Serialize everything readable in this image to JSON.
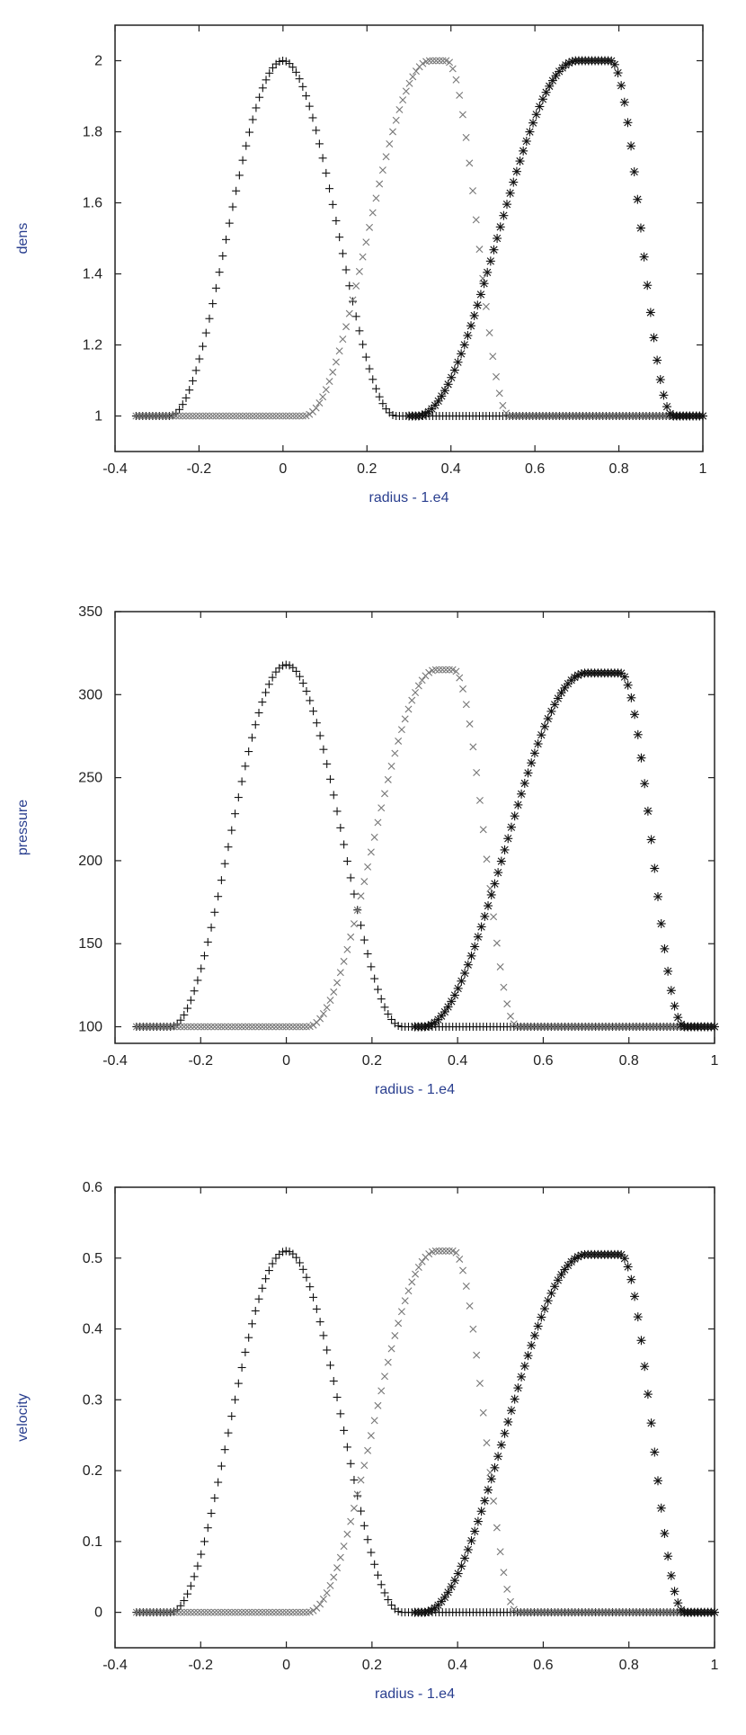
{
  "chart_data": [
    {
      "type": "scatter",
      "ylabel": "dens",
      "xlabel": "radius - 1.e4",
      "xlim": [
        -0.4,
        1.0
      ],
      "ylim": [
        0.9,
        2.1
      ],
      "xticks": [
        "-0.4",
        "-0.2",
        "0",
        "0.2",
        "0.4",
        "0.6",
        "0.8",
        "1"
      ],
      "yticks": [
        "1",
        "1.2",
        "1.4",
        "1.6",
        "1.8",
        "2"
      ],
      "ytick_values": [
        1,
        1.2,
        1.4,
        1.6,
        1.8,
        2
      ],
      "series": [
        {
          "marker": "plus",
          "color": "#111111",
          "base": 1.0,
          "amplitude": 1.0,
          "center": 0.0,
          "width": 0.27,
          "flat": 0.0,
          "x_range": [
            -0.35,
            1.0
          ]
        },
        {
          "marker": "cross",
          "color": "#777777",
          "base": 1.0,
          "amplitude": 1.0,
          "center": 0.37,
          "width_left": 0.3,
          "width_right": 0.15,
          "flat": 0.02,
          "x_range": [
            -0.35,
            1.0
          ]
        },
        {
          "marker": "star",
          "color": "#111111",
          "base": 1.0,
          "amplitude": 1.0,
          "center": 0.74,
          "width_left": 0.38,
          "width_right": 0.15,
          "flat": 0.04,
          "x_range": [
            0.3,
            1.0
          ]
        }
      ]
    },
    {
      "type": "scatter",
      "ylabel": "pressure",
      "xlabel": "radius - 1.e4",
      "xlim": [
        -0.4,
        1.0
      ],
      "ylim": [
        90,
        350
      ],
      "xticks": [
        "-0.4",
        "-0.2",
        "0",
        "0.2",
        "0.4",
        "0.6",
        "0.8",
        "1"
      ],
      "yticks": [
        "100",
        "150",
        "200",
        "250",
        "300",
        "350"
      ],
      "ytick_values": [
        100,
        150,
        200,
        250,
        300,
        350
      ],
      "series": [
        {
          "marker": "plus",
          "color": "#111111",
          "base": 100,
          "amplitude": 218,
          "center": 0.0,
          "width": 0.27,
          "flat": 0.0,
          "x_range": [
            -0.35,
            1.0
          ]
        },
        {
          "marker": "cross",
          "color": "#777777",
          "base": 100,
          "amplitude": 215,
          "center": 0.37,
          "width_left": 0.3,
          "width_right": 0.15,
          "flat": 0.02,
          "x_range": [
            -0.35,
            1.0
          ]
        },
        {
          "marker": "star",
          "color": "#111111",
          "base": 100,
          "amplitude": 213,
          "center": 0.74,
          "width_left": 0.38,
          "width_right": 0.15,
          "flat": 0.04,
          "x_range": [
            0.3,
            1.0
          ]
        }
      ]
    },
    {
      "type": "scatter",
      "ylabel": "velocity",
      "xlabel": "radius - 1.e4",
      "xlim": [
        -0.4,
        1.0
      ],
      "ylim": [
        -0.05,
        0.6
      ],
      "xticks": [
        "-0.4",
        "-0.2",
        "0",
        "0.2",
        "0.4",
        "0.6",
        "0.8",
        "1"
      ],
      "yticks": [
        "0",
        "0.1",
        "0.2",
        "0.3",
        "0.4",
        "0.5",
        "0.6"
      ],
      "ytick_values": [
        0,
        0.1,
        0.2,
        0.3,
        0.4,
        0.5,
        0.6
      ],
      "series": [
        {
          "marker": "plus",
          "color": "#111111",
          "base": 0,
          "amplitude": 0.51,
          "center": 0.0,
          "width": 0.27,
          "flat": 0.0,
          "x_range": [
            -0.35,
            1.0
          ]
        },
        {
          "marker": "cross",
          "color": "#777777",
          "base": 0,
          "amplitude": 0.51,
          "center": 0.37,
          "width_left": 0.3,
          "width_right": 0.15,
          "flat": 0.02,
          "x_range": [
            -0.35,
            1.0
          ]
        },
        {
          "marker": "star",
          "color": "#111111",
          "base": 0,
          "amplitude": 0.505,
          "center": 0.74,
          "width_left": 0.38,
          "width_right": 0.15,
          "flat": 0.04,
          "x_range": [
            0.3,
            1.0
          ]
        }
      ]
    }
  ]
}
